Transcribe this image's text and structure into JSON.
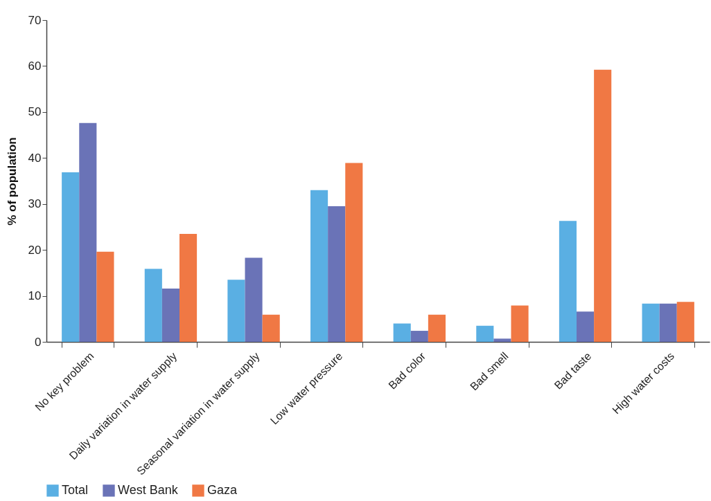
{
  "chart_data": {
    "type": "bar",
    "ylabel": "% of population",
    "categories": [
      "No key problem",
      "Daily variation in water supply",
      "Seasonal variation in water supply",
      "Low water pressure",
      "Bad color",
      "Bad smell",
      "Bad taste",
      "High water costs"
    ],
    "series": [
      {
        "name": "Total",
        "color": "#5aafe3",
        "values": [
          36.9,
          15.9,
          13.5,
          33.0,
          4.0,
          3.5,
          26.3,
          8.3
        ]
      },
      {
        "name": "West Bank",
        "color": "#6a73b7",
        "values": [
          47.6,
          11.6,
          18.3,
          29.5,
          2.4,
          0.7,
          6.6,
          8.3
        ]
      },
      {
        "name": "Gaza",
        "color": "#f07844",
        "values": [
          19.6,
          23.5,
          5.9,
          38.9,
          5.9,
          7.9,
          59.2,
          8.7
        ]
      }
    ],
    "ylim": [
      0,
      70
    ],
    "yticks": [
      0,
      10,
      20,
      30,
      40,
      50,
      60,
      70
    ],
    "grid": false,
    "legend": "bottom"
  }
}
